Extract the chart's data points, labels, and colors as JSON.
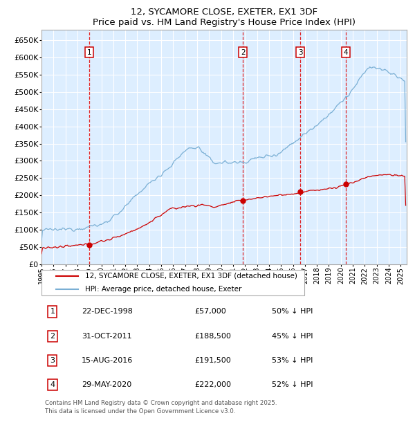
{
  "title": "12, SYCAMORE CLOSE, EXETER, EX1 3DF",
  "subtitle": "Price paid vs. HM Land Registry's House Price Index (HPI)",
  "ylim": [
    0,
    680000
  ],
  "yticks": [
    0,
    50000,
    100000,
    150000,
    200000,
    250000,
    300000,
    350000,
    400000,
    450000,
    500000,
    550000,
    600000,
    650000
  ],
  "xlim_start": 1995.0,
  "xlim_end": 2025.5,
  "background_color": "#ffffff",
  "plot_bg_color": "#ddeeff",
  "grid_color": "#ffffff",
  "sale_color": "#cc0000",
  "hpi_color": "#7aafd4",
  "sale_label": "12, SYCAMORE CLOSE, EXETER, EX1 3DF (detached house)",
  "hpi_label": "HPI: Average price, detached house, Exeter",
  "transactions": [
    {
      "num": 1,
      "date": "22-DEC-1998",
      "price": 57000,
      "price_str": "£57,000",
      "pct": "50%",
      "year": 1998.97
    },
    {
      "num": 2,
      "date": "31-OCT-2011",
      "price": 188500,
      "price_str": "£188,500",
      "pct": "45%",
      "year": 2011.83
    },
    {
      "num": 3,
      "date": "15-AUG-2016",
      "price": 191500,
      "price_str": "£191,500",
      "pct": "53%",
      "year": 2016.62
    },
    {
      "num": 4,
      "date": "29-MAY-2020",
      "price": 222000,
      "price_str": "£222,000",
      "pct": "52%",
      "year": 2020.41
    }
  ],
  "footnote1": "Contains HM Land Registry data © Crown copyright and database right 2025.",
  "footnote2": "This data is licensed under the Open Government Licence v3.0.",
  "vline_color": "#dd0000",
  "number_box_color": "#cc0000",
  "hpi_anchor_t": [
    0.0,
    0.05,
    0.1,
    0.167,
    0.22,
    0.28,
    0.35,
    0.4,
    0.43,
    0.47,
    0.55,
    0.6,
    0.65,
    0.7,
    0.75,
    0.8,
    0.85,
    0.9,
    0.95,
    1.0
  ],
  "hpi_anchor_v": [
    98000,
    100000,
    103000,
    115000,
    155000,
    220000,
    280000,
    335000,
    340000,
    295000,
    295000,
    310000,
    320000,
    360000,
    400000,
    445000,
    500000,
    575000,
    560000,
    530000
  ],
  "sale_anchor_t": [
    0.0,
    0.04,
    0.13,
    0.2,
    0.28,
    0.35,
    0.4,
    0.45,
    0.47,
    0.55,
    0.6,
    0.65,
    0.7,
    0.75,
    0.8,
    0.85,
    0.9,
    0.95,
    1.0
  ],
  "sale_anchor_v": [
    48000,
    48000,
    57000,
    75000,
    110000,
    158000,
    168000,
    172000,
    165000,
    185000,
    193000,
    200000,
    205000,
    215000,
    220000,
    235000,
    255000,
    260000,
    255000
  ]
}
